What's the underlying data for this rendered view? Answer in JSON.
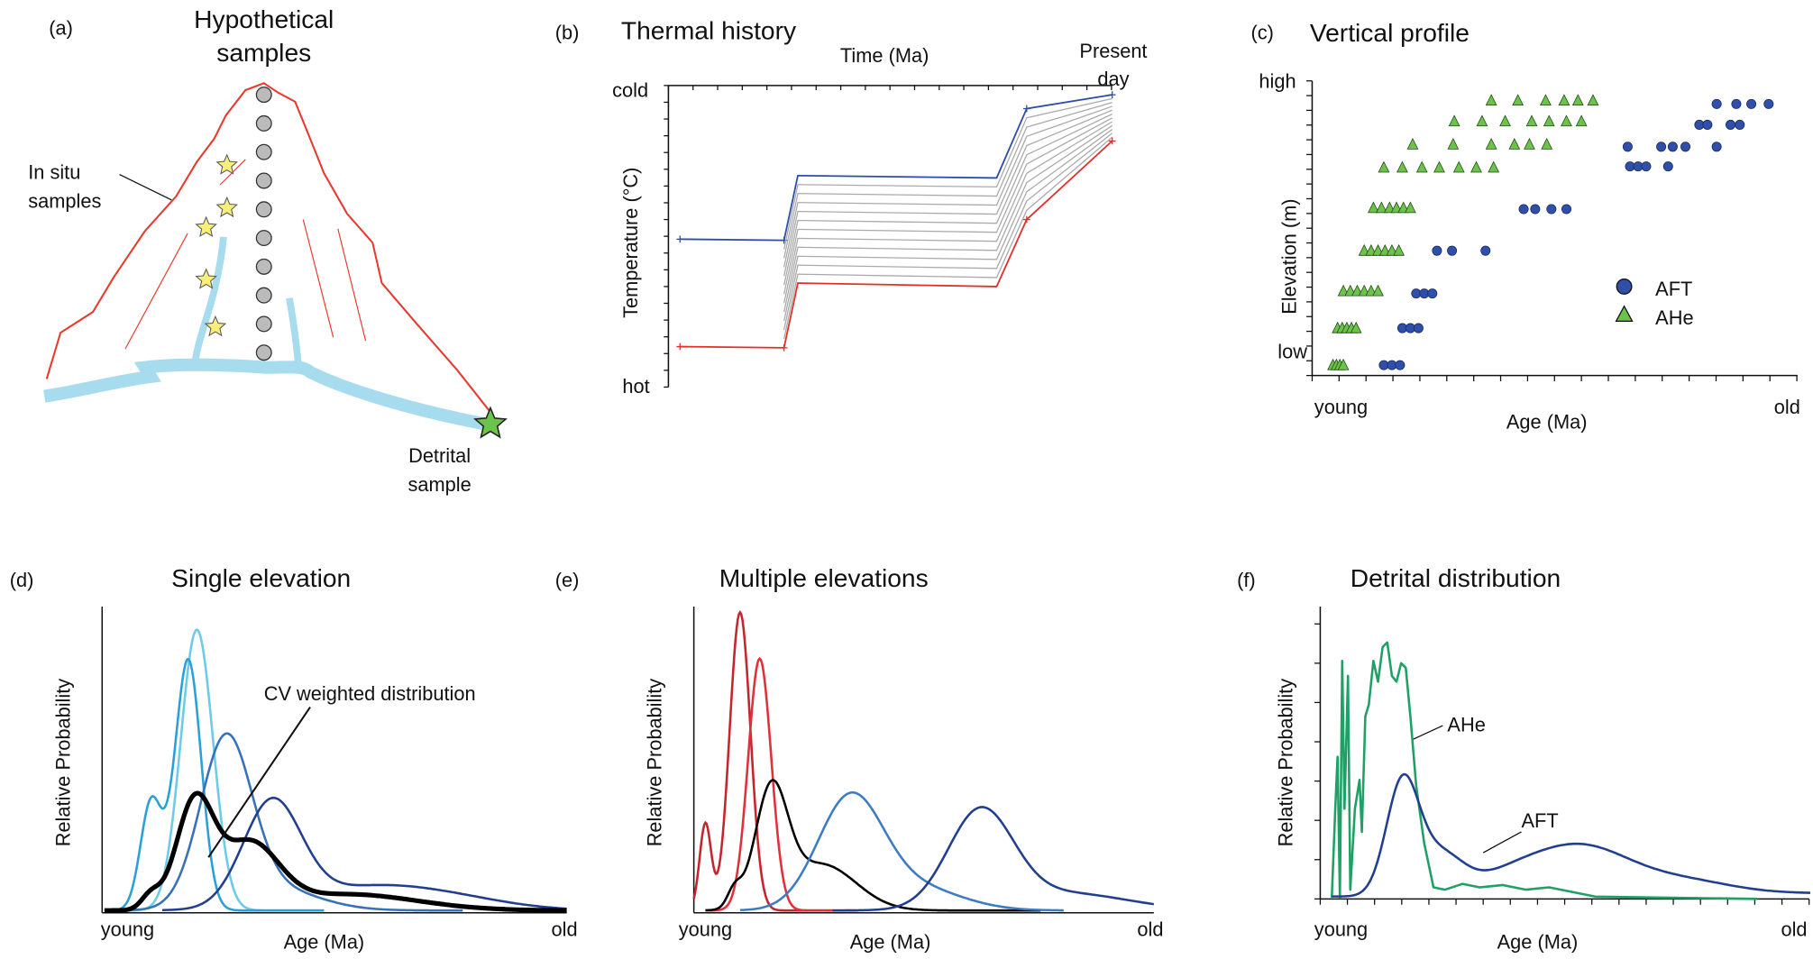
{
  "panels": [
    {
      "label": "(a)",
      "title": [
        "Hypothetical",
        "samples"
      ],
      "in_situ_label": [
        "In situ",
        "samples"
      ],
      "detrital_label": [
        "Detrital",
        "sample"
      ]
    },
    {
      "label": "(b)",
      "title": "Thermal history",
      "x_axis_label": "Time (Ma)",
      "present_label": [
        "Present",
        "day"
      ],
      "y_top": "cold",
      "y_bottom": "hot",
      "y_axis_label": "Temperature (°C)"
    },
    {
      "label": "(c)",
      "title": "Vertical profile",
      "y_top": "high",
      "y_bottom": "low",
      "y_axis_label": "Elevation (m)",
      "x_left": "young",
      "x_axis_label": "Age (Ma)",
      "x_right": "old",
      "legend": [
        "AFT",
        "AHe"
      ]
    },
    {
      "label": "(d)",
      "title": "Single elevation",
      "y_axis_label": "Relative Probability",
      "annotation": "CV weighted distribution",
      "x_left": "young",
      "x_axis_label": "Age (Ma)",
      "x_right": "old"
    },
    {
      "label": "(e)",
      "title": "Multiple elevations",
      "y_axis_label": "Relative Probability",
      "x_left": "young",
      "x_axis_label": "Age (Ma)",
      "x_right": "old"
    },
    {
      "label": "(f)",
      "title": "Detrital distribution",
      "y_axis_label": "Relative Probability",
      "annotations": [
        "AHe",
        "AFT"
      ],
      "x_left": "young",
      "x_axis_label": "Age (Ma)",
      "x_right": "old"
    }
  ]
}
